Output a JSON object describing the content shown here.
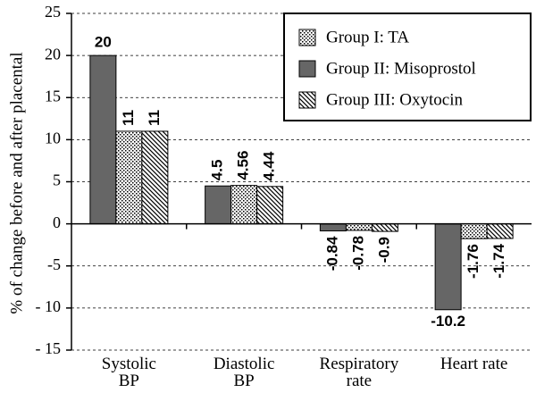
{
  "chart_data": {
    "type": "bar",
    "y_label": "% of change before and after placental",
    "categories": [
      "Systolic\nBP",
      "Diastolic\nBP",
      "Respiratory\nrate",
      "Heart rate"
    ],
    "series": [
      {
        "name": "Group I: TA",
        "color": "#000000",
        "pattern": "dots",
        "values": [
          11,
          4.56,
          -0.78,
          -1.76
        ]
      },
      {
        "name": "Group II: Misoprostol",
        "color": "#666666",
        "values": [
          20,
          4.5,
          -0.84,
          -10.2
        ]
      },
      {
        "name": "Group III: Oxytocin",
        "color": "#000000",
        "pattern": "hatch",
        "values": [
          11,
          4.44,
          -0.9,
          -1.74
        ]
      }
    ],
    "bar_order": [
      1,
      0,
      2
    ],
    "ylim": [
      -15,
      25
    ],
    "yticks": [
      {
        "value": -15,
        "label": "- 15"
      },
      {
        "value": -10,
        "label": "- 10"
      },
      -5,
      0,
      5,
      10,
      15,
      20,
      25
    ],
    "grid": true,
    "grid_style": "dashed",
    "legend": "top-right"
  }
}
